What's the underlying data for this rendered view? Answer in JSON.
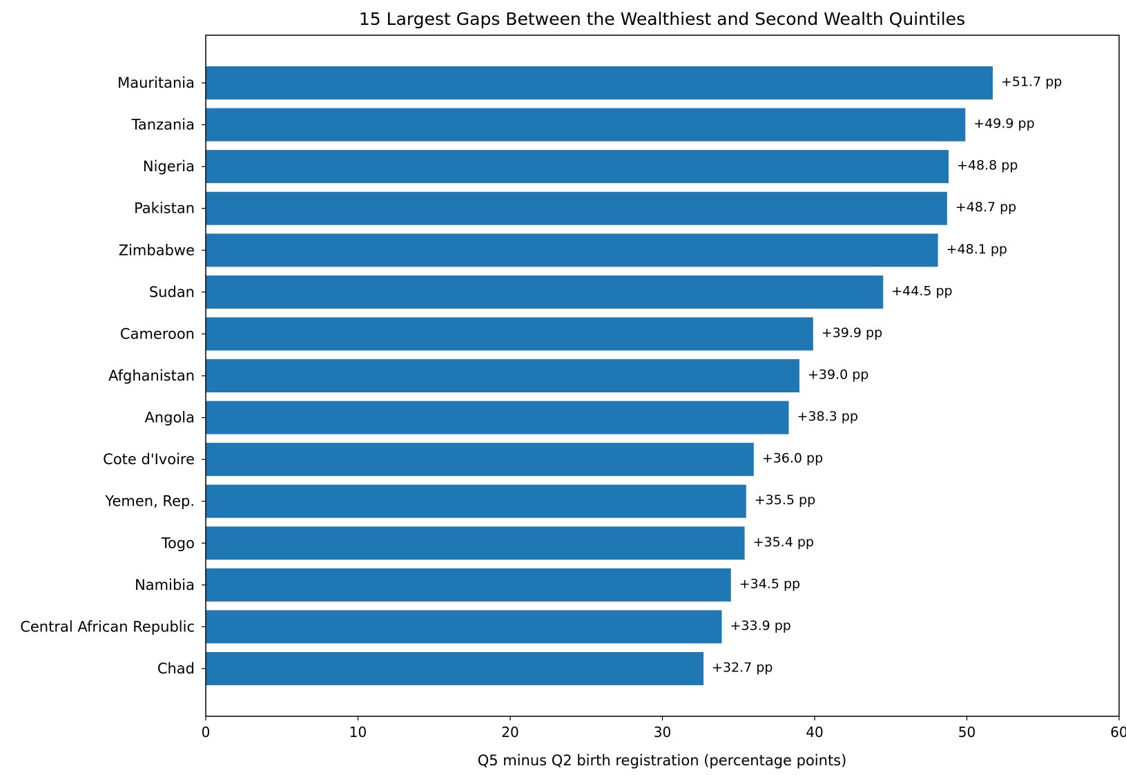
{
  "chart_data": {
    "type": "bar",
    "orientation": "horizontal",
    "title": "15 Largest Gaps Between the Wealthiest and Second Wealth Quintiles",
    "xlabel": "Q5 minus Q2 birth registration (percentage points)",
    "ylabel": "",
    "xlim": [
      0,
      60
    ],
    "xticks": [
      0,
      10,
      20,
      30,
      40,
      50,
      60
    ],
    "xtick_labels": [
      "0",
      "10",
      "20",
      "30",
      "40",
      "50",
      "60"
    ],
    "grid": false,
    "bar_color": "#1f77b4",
    "categories": [
      "Mauritania",
      "Tanzania",
      "Nigeria",
      "Pakistan",
      "Zimbabwe",
      "Sudan",
      "Cameroon",
      "Afghanistan",
      "Angola",
      "Cote d'Ivoire",
      "Yemen, Rep.",
      "Togo",
      "Namibia",
      "Central African Republic",
      "Chad"
    ],
    "values": [
      51.7,
      49.9,
      48.8,
      48.7,
      48.1,
      44.5,
      39.9,
      39.0,
      38.3,
      36.0,
      35.5,
      35.4,
      34.5,
      33.9,
      32.7
    ],
    "data_labels": [
      "+51.7 pp",
      "+49.9 pp",
      "+48.8 pp",
      "+48.7 pp",
      "+48.1 pp",
      "+44.5 pp",
      "+39.9 pp",
      "+39.0 pp",
      "+38.3 pp",
      "+36.0 pp",
      "+35.5 pp",
      "+35.4 pp",
      "+34.5 pp",
      "+33.9 pp",
      "+32.7 pp"
    ]
  }
}
